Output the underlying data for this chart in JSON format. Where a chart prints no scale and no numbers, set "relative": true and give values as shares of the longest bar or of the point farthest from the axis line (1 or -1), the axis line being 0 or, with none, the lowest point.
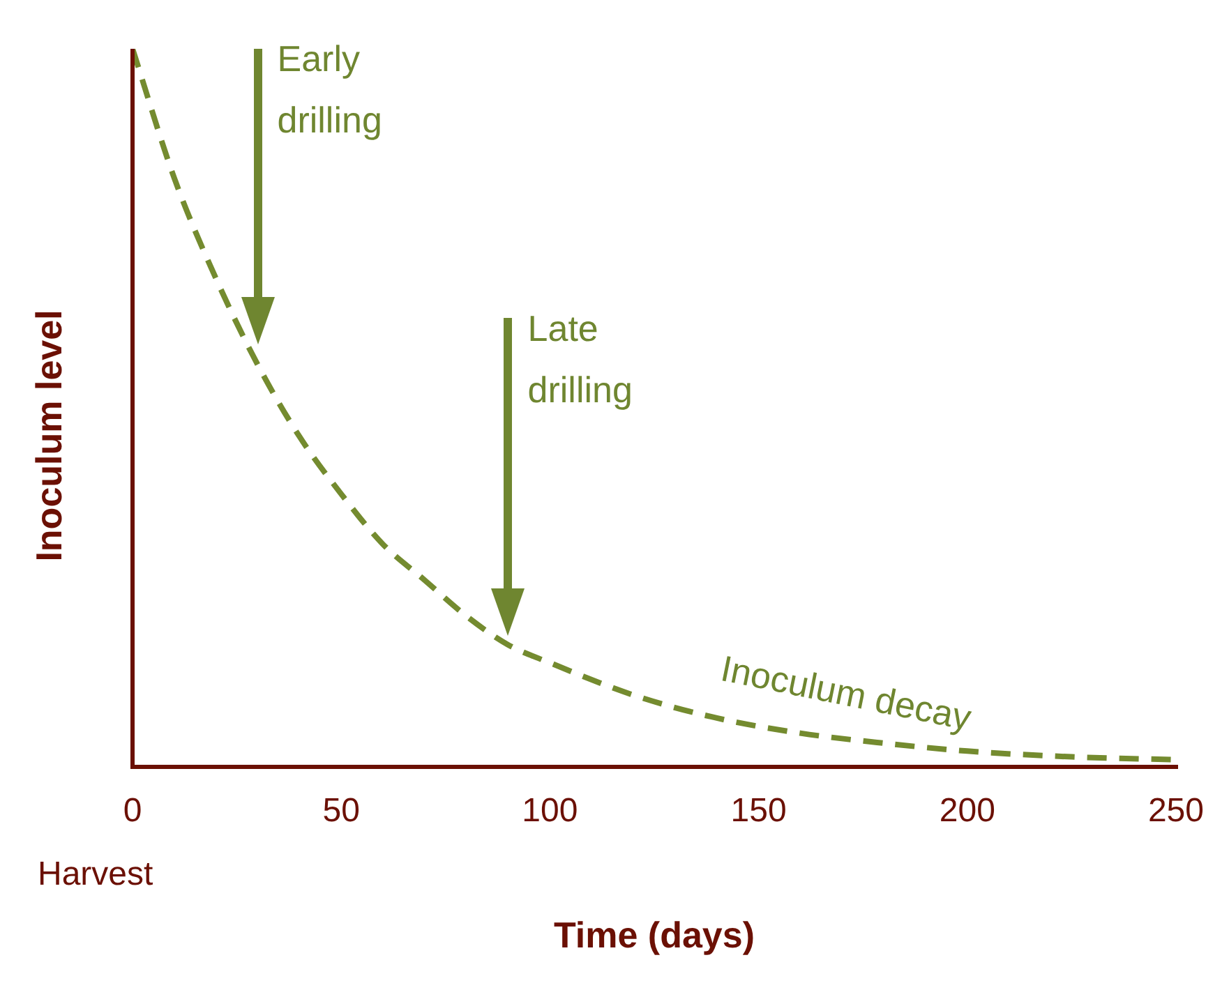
{
  "chart_data": {
    "type": "line",
    "xlabel": "Time (days)",
    "ylabel": "Inoculum level",
    "relative": true,
    "xlim": [
      0,
      250
    ],
    "xticks": [
      0,
      50,
      100,
      150,
      200,
      250
    ],
    "series": [
      {
        "color": "#748b2f",
        "x": [
          0,
          10,
          20,
          30,
          40,
          50,
          60,
          70,
          80,
          90,
          100,
          120,
          140,
          160,
          180,
          200,
          225,
          250
        ],
        "values": [
          1,
          0.82,
          0.68,
          0.56,
          0.46,
          0.38,
          0.31,
          0.26,
          0.21,
          0.17,
          0.145,
          0.1,
          0.068,
          0.047,
          0.033,
          0.022,
          0.014,
          0.01
        ]
      }
    ],
    "line_style": "dashed",
    "marker": "none",
    "grid": false,
    "legend": false,
    "annotations": [
      "Early drilling",
      "Late drilling",
      {
        "text": "Inoculum decay",
        "x": 170,
        "y": 0.04
      },
      "Harvest"
    ]
  }
}
